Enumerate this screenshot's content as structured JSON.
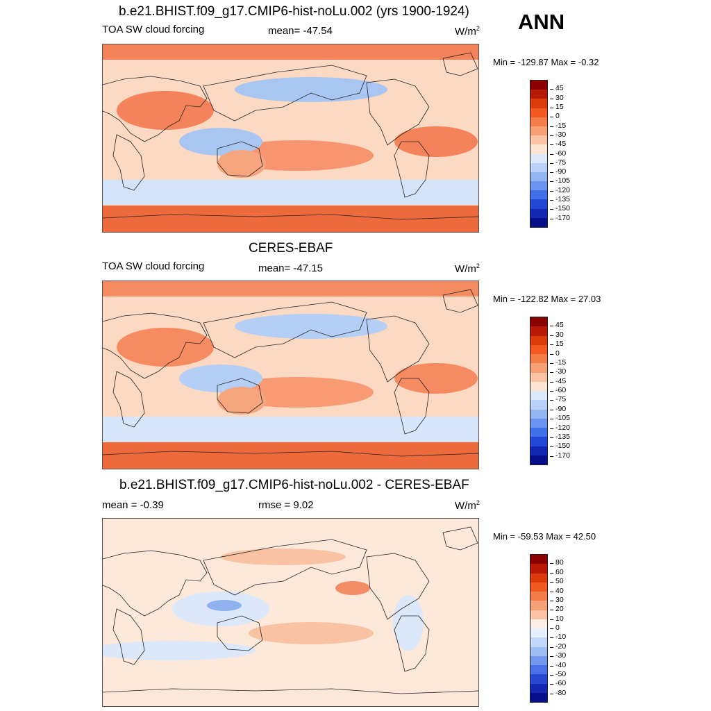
{
  "season": "ANN",
  "panels": [
    {
      "title": "b.e21.BHIST.f09_g17.CMIP6-hist-noLu.002 (yrs 1900-1924)",
      "left_label": "TOA SW cloud forcing",
      "mid_label": "mean= -47.54",
      "unit": "W/m",
      "unit_sup": "2",
      "minmax": "Min = -129.87 Max =  -0.32",
      "colorbar_labels": [
        "45",
        "30",
        "15",
        "0",
        "-15",
        "-30",
        "-45",
        "-60",
        "-75",
        "-90",
        "-105",
        "-120",
        "-135",
        "-150",
        "-170"
      ],
      "colorbar_colors": [
        "#8b0000",
        "#b81a08",
        "#dd3a0e",
        "#f05a1e",
        "#f47c48",
        "#f6a078",
        "#fac3a4",
        "#fde3d1",
        "#dbe9fb",
        "#b9d1f7",
        "#92b6f2",
        "#6a94ee",
        "#4270e8",
        "#2448d6",
        "#1328b4",
        "#050f8a"
      ],
      "map_colors": {
        "bg": "#fcd9c2",
        "warm": "#f4825a",
        "hot": "#ee6a3c",
        "cool": "#d3e3fa",
        "cold": "#a9c6f3",
        "land": "#f6a57f"
      }
    },
    {
      "title": "CERES-EBAF",
      "left_label": "TOA SW cloud forcing",
      "mid_label": "mean= -47.15",
      "unit": "W/m",
      "unit_sup": "2",
      "minmax": "Min = -122.82 Max =  27.03",
      "colorbar_labels": [
        "45",
        "30",
        "15",
        "0",
        "-15",
        "-30",
        "-45",
        "-60",
        "-75",
        "-90",
        "-105",
        "-120",
        "-135",
        "-150",
        "-170"
      ],
      "colorbar_colors": [
        "#8b0000",
        "#b81a08",
        "#dd3a0e",
        "#f05a1e",
        "#f47c48",
        "#f6a078",
        "#fac3a4",
        "#fde3d1",
        "#dbe9fb",
        "#b9d1f7",
        "#92b6f2",
        "#6a94ee",
        "#4270e8",
        "#2448d6",
        "#1328b4",
        "#050f8a"
      ],
      "map_colors": {
        "bg": "#fcd9c2",
        "warm": "#f68b62",
        "hot": "#ee6a3c",
        "cool": "#d6e6fb",
        "cold": "#b4cef5",
        "land": "#f6a57f"
      }
    },
    {
      "title": "b.e21.BHIST.f09_g17.CMIP6-hist-noLu.002 - CERES-EBAF",
      "left_label": "mean =  -0.39",
      "mid_label": "rmse =   9.02",
      "unit": "W/m",
      "unit_sup": "2",
      "minmax": "Min = -59.53 Max =  42.50",
      "colorbar_labels": [
        "80",
        "60",
        "50",
        "40",
        "30",
        "20",
        "10",
        "0",
        "-10",
        "-20",
        "-30",
        "-40",
        "-50",
        "-60",
        "-80"
      ],
      "colorbar_colors": [
        "#8b0000",
        "#b81a08",
        "#dd3a0e",
        "#f05a1e",
        "#f47c48",
        "#f6a078",
        "#fac3a4",
        "#fdeee4",
        "#e4eefc",
        "#c3d8f8",
        "#9dbdf3",
        "#7399ee",
        "#4a72e6",
        "#2848d2",
        "#1428b2",
        "#050f8a"
      ],
      "map_colors": {
        "bg": "#fde8da",
        "warm": "#f9c2a3",
        "hot": "#f28d66",
        "cool": "#dbe8fb",
        "cold": "#8fb2ef",
        "land": "#d6e5fb"
      }
    }
  ]
}
